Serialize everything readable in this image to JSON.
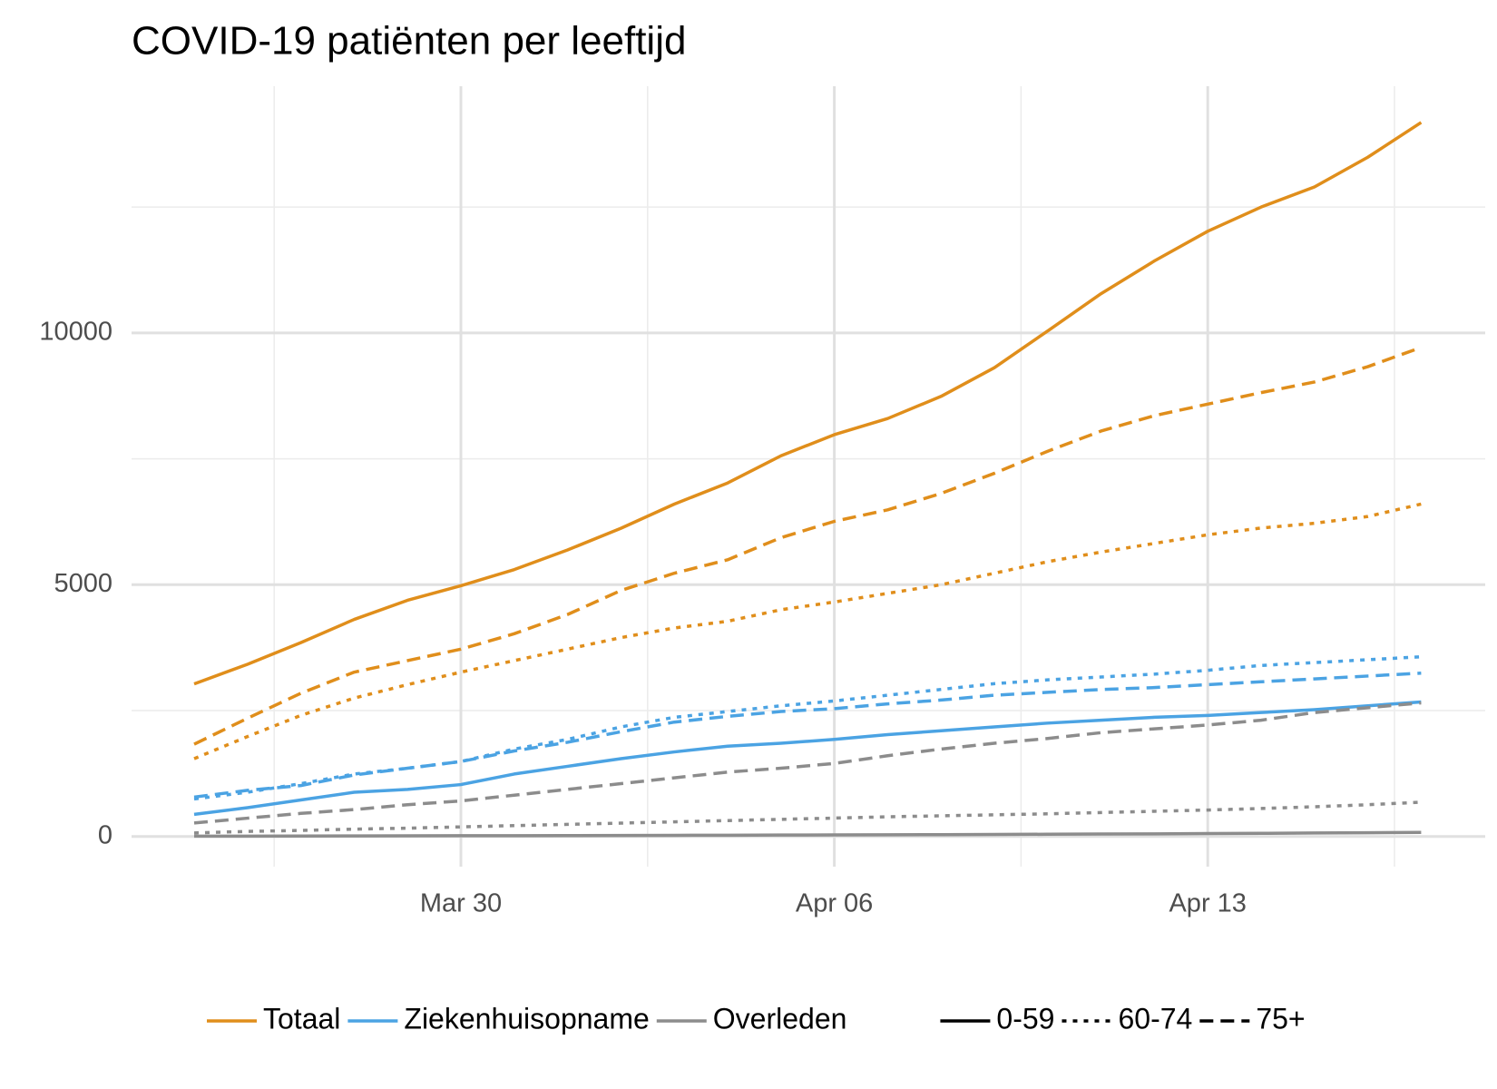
{
  "chart_data": {
    "type": "line",
    "title": "COVID-19 patiënten per leeftijd",
    "x": [
      "Mar 25",
      "Mar 26",
      "Mar 27",
      "Mar 28",
      "Mar 29",
      "Mar 30",
      "Mar 31",
      "Apr 01",
      "Apr 02",
      "Apr 03",
      "Apr 04",
      "Apr 05",
      "Apr 06",
      "Apr 07",
      "Apr 08",
      "Apr 09",
      "Apr 10",
      "Apr 11",
      "Apr 12",
      "Apr 13",
      "Apr 14",
      "Apr 15",
      "Apr 16",
      "Apr 17"
    ],
    "xticks": [
      "Mar 30",
      "Apr 06",
      "Apr 13"
    ],
    "ylim": [
      -600,
      14900
    ],
    "yticks": [
      0,
      5000,
      10000
    ],
    "y_minor_grid": [
      2500,
      7500,
      12500
    ],
    "grid": true,
    "legend_position": "bottom",
    "color_legend": [
      {
        "name": "Totaal",
        "color": "#E08E1B"
      },
      {
        "name": "Ziekenhuisopname",
        "color": "#4BA3E3"
      },
      {
        "name": "Overleden",
        "color": "#8C8C8C"
      }
    ],
    "linetype_legend": [
      {
        "name": "0-59",
        "linetype": "solid"
      },
      {
        "name": "60-74",
        "linetype": "dotted"
      },
      {
        "name": "75+",
        "linetype": "dashed"
      }
    ],
    "series": [
      {
        "group": "Totaal",
        "age": "0-59",
        "values": [
          3030,
          3420,
          3850,
          4310,
          4690,
          4980,
          5300,
          5690,
          6120,
          6600,
          7020,
          7560,
          7980,
          8300,
          8740,
          9310,
          10040,
          10780,
          11430,
          12020,
          12500,
          12900,
          13490,
          14180
        ]
      },
      {
        "group": "Totaal",
        "age": "60-74",
        "values": [
          1545,
          1984,
          2404,
          2748,
          3015,
          3263,
          3492,
          3720,
          3949,
          4140,
          4274,
          4503,
          4656,
          4828,
          4999,
          5228,
          5457,
          5648,
          5820,
          5991,
          6125,
          6220,
          6354,
          6602
        ]
      },
      {
        "group": "Totaal",
        "age": "75+",
        "values": [
          1832,
          2347,
          2843,
          3263,
          3492,
          3720,
          4026,
          4408,
          4885,
          5228,
          5495,
          5934,
          6258,
          6487,
          6812,
          7212,
          7651,
          8052,
          8357,
          8586,
          8815,
          9025,
          9330,
          9712
        ]
      },
      {
        "group": "Ziekenhuisopname",
        "age": "0-59",
        "values": [
          439,
          572,
          725,
          878,
          935,
          1030,
          1240,
          1393,
          1545,
          1679,
          1793,
          1851,
          1927,
          2023,
          2099,
          2175,
          2251,
          2309,
          2366,
          2404,
          2461,
          2519,
          2595,
          2671
        ]
      },
      {
        "group": "Ziekenhuisopname",
        "age": "60-74",
        "values": [
          744,
          878,
          1049,
          1240,
          1355,
          1488,
          1736,
          1927,
          2175,
          2366,
          2481,
          2595,
          2691,
          2805,
          2920,
          3034,
          3110,
          3167,
          3224,
          3300,
          3396,
          3453,
          3510,
          3568
        ]
      },
      {
        "group": "Ziekenhuisopname",
        "age": "75+",
        "values": [
          782,
          916,
          1011,
          1221,
          1355,
          1488,
          1698,
          1870,
          2080,
          2271,
          2385,
          2481,
          2538,
          2633,
          2709,
          2805,
          2862,
          2919,
          2957,
          3015,
          3072,
          3129,
          3186,
          3244
        ]
      },
      {
        "group": "Overleden",
        "age": "0-59",
        "values": [
          5,
          7,
          8,
          10,
          12,
          14,
          16,
          18,
          20,
          22,
          25,
          28,
          30,
          33,
          36,
          40,
          44,
          48,
          52,
          57,
          62,
          68,
          74,
          80
        ]
      },
      {
        "group": "Overleden",
        "age": "60-74",
        "values": [
          70,
          100,
          120,
          145,
          165,
          190,
          215,
          240,
          265,
          290,
          315,
          340,
          365,
          390,
          410,
          430,
          450,
          475,
          500,
          525,
          555,
          590,
          630,
          680
        ]
      },
      {
        "group": "Overleden",
        "age": "75+",
        "values": [
          267,
          363,
          458,
          534,
          630,
          706,
          820,
          935,
          1049,
          1164,
          1278,
          1355,
          1450,
          1603,
          1736,
          1851,
          1946,
          2061,
          2137,
          2213,
          2309,
          2461,
          2557,
          2652
        ]
      }
    ]
  }
}
